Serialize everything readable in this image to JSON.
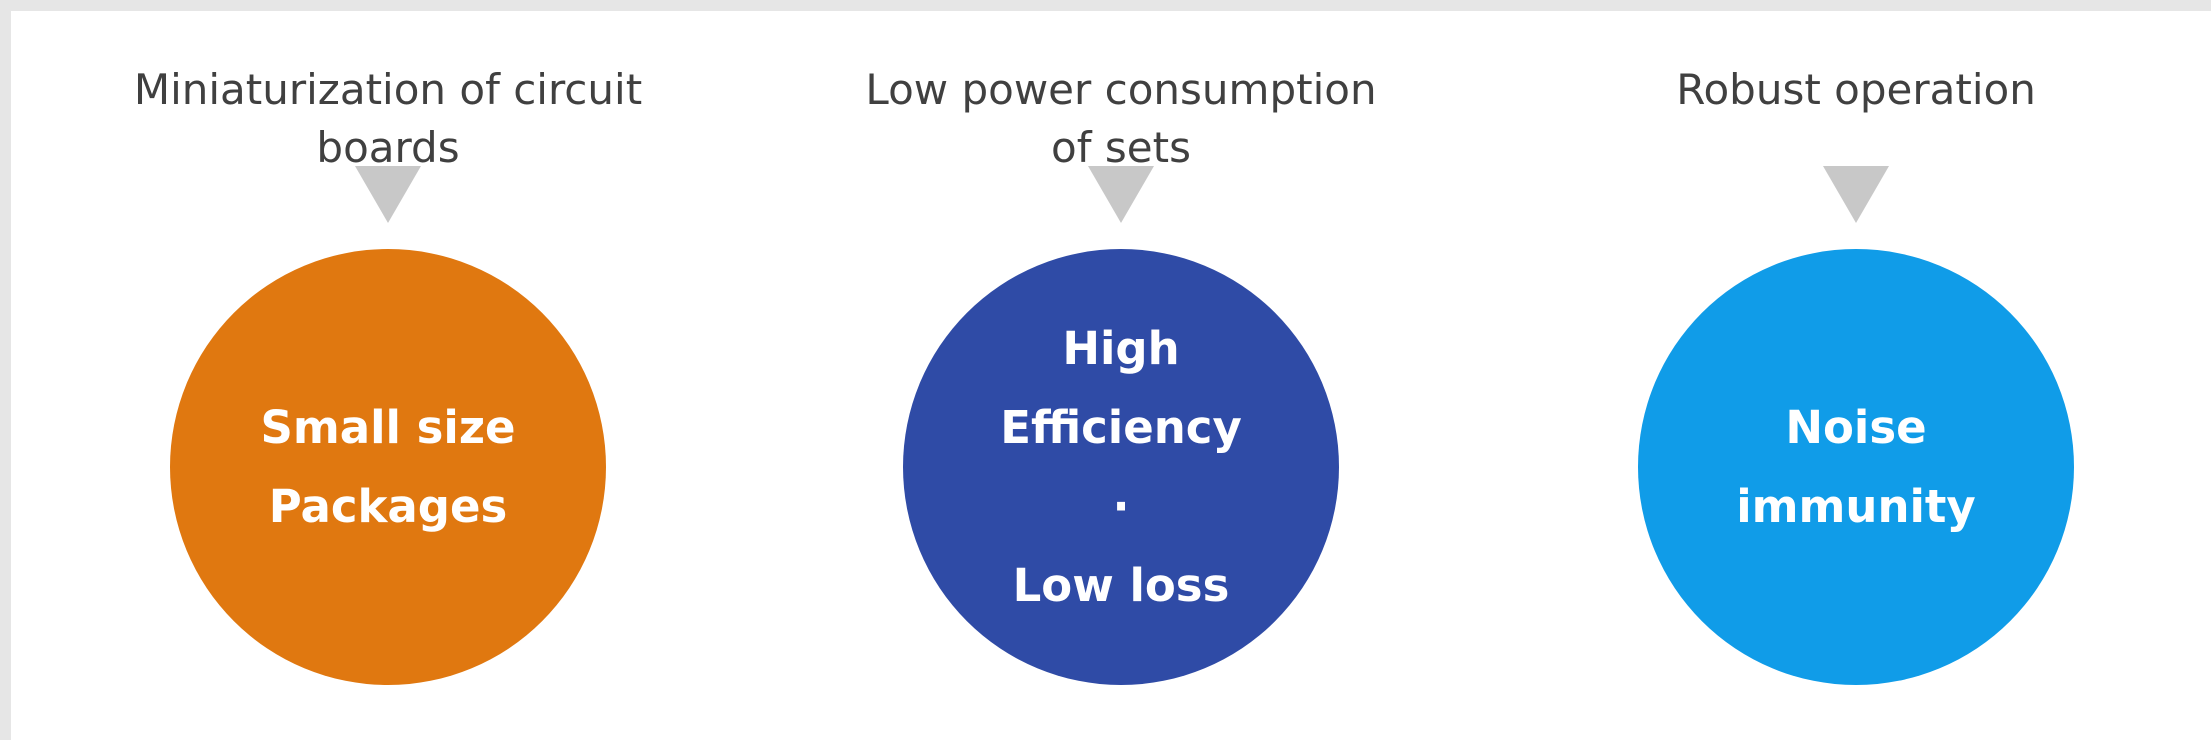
{
  "columns": [
    {
      "heading": [
        "Miniaturization of circuit",
        "boards"
      ],
      "lines": [
        "Small size",
        "Packages"
      ],
      "color": "#e07810"
    },
    {
      "heading": [
        "Low power consumption",
        "of sets"
      ],
      "lines": [
        "High",
        "Efficiency",
        "·",
        "Low loss"
      ],
      "color": "#2f4ba6"
    },
    {
      "heading": [
        "Robust operation"
      ],
      "lines": [
        "Noise",
        "immunity"
      ],
      "color": "#109ce8"
    }
  ]
}
